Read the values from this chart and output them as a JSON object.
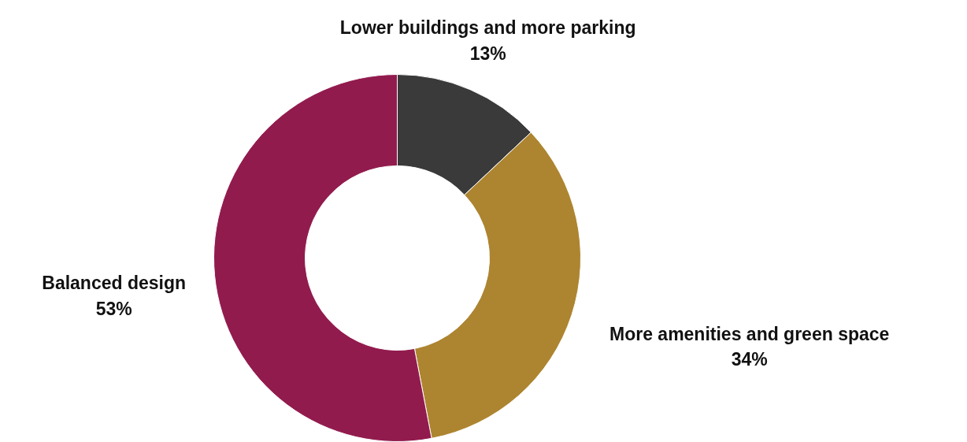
{
  "chart_data": {
    "type": "donut",
    "categories": [
      "Lower buildings and more parking",
      "More amenities and green space",
      "Balanced design"
    ],
    "values": [
      13,
      34,
      53
    ],
    "colors": [
      "#3a3a3a",
      "#ad8530",
      "#921b4e"
    ],
    "value_labels": [
      "13%",
      "34%",
      "53%"
    ]
  }
}
